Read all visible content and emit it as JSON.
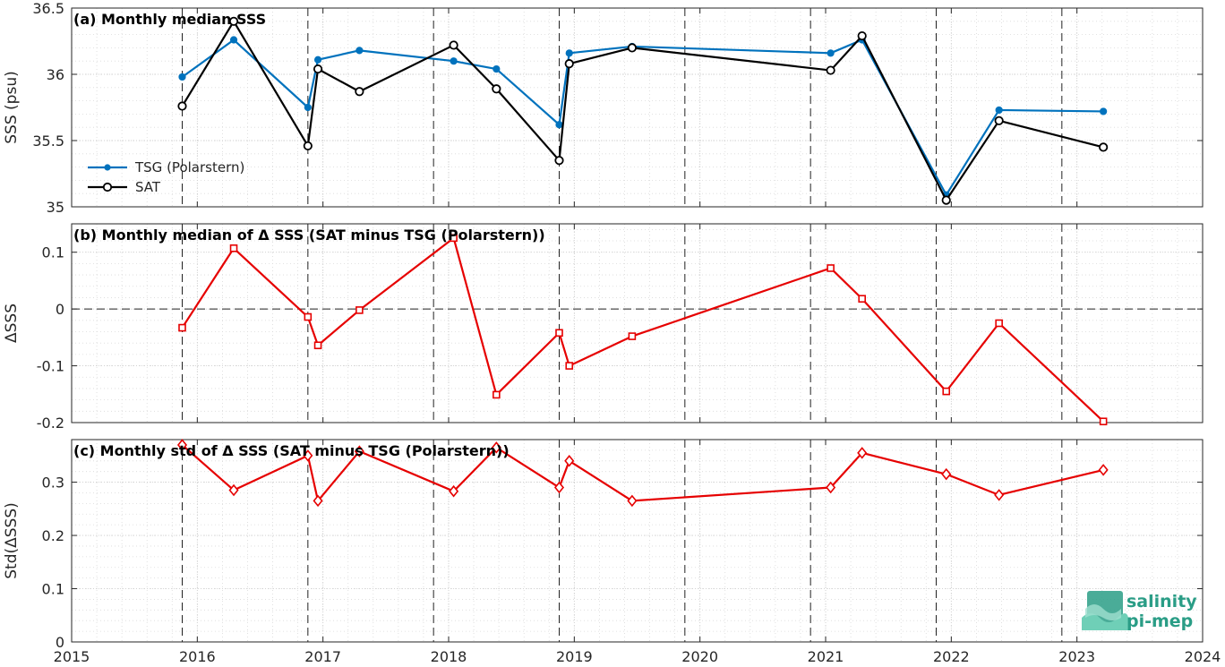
{
  "chart_data": [
    {
      "type": "line",
      "title": "(a) Monthly median SSS",
      "ylabel": "SSS (psu)",
      "xlim": [
        2015,
        2024
      ],
      "ylim": [
        35,
        36.5
      ],
      "yticks": [
        35,
        35.5,
        36,
        36.5
      ],
      "yticklabels": [
        "35",
        "35.5",
        "36",
        "36.5"
      ],
      "legend_position": "middle-left",
      "series": [
        {
          "name": "TSG (Polarstern)",
          "color": "#0072bd",
          "marker": "dot",
          "x": [
            2015.88,
            2016.29,
            2016.88,
            2016.96,
            2017.29,
            2018.04,
            2018.38,
            2018.88,
            2018.96,
            2019.46,
            2021.04,
            2021.29,
            2021.96,
            2022.38,
            2023.21
          ],
          "y": [
            35.98,
            36.26,
            35.75,
            36.11,
            36.18,
            36.1,
            36.04,
            35.62,
            36.16,
            36.21,
            36.16,
            36.26,
            35.09,
            35.73,
            35.72
          ]
        },
        {
          "name": "SAT",
          "color": "#000000",
          "marker": "circle",
          "x": [
            2015.88,
            2016.29,
            2016.88,
            2016.96,
            2017.29,
            2018.04,
            2018.38,
            2018.88,
            2018.96,
            2019.46,
            2021.04,
            2021.29,
            2021.96,
            2022.38,
            2023.21
          ],
          "y": [
            35.76,
            36.4,
            35.46,
            36.04,
            35.87,
            36.22,
            35.89,
            35.35,
            36.08,
            36.2,
            36.03,
            36.29,
            35.05,
            35.65,
            35.45
          ]
        }
      ]
    },
    {
      "type": "line",
      "title": "(b) Monthly median of Δ SSS (SAT minus TSG (Polarstern))",
      "ylabel": "ΔSSS",
      "xlim": [
        2015,
        2024
      ],
      "ylim": [
        -0.2,
        0.15
      ],
      "yticks": [
        -0.2,
        -0.1,
        0,
        0.1
      ],
      "yticklabels": [
        "-0.2",
        "-0.1",
        "0",
        "0.1"
      ],
      "zero_line": true,
      "series": [
        {
          "color": "#e60000",
          "marker": "square",
          "x": [
            2015.88,
            2016.29,
            2016.88,
            2016.96,
            2017.29,
            2018.04,
            2018.38,
            2018.88,
            2018.96,
            2019.46,
            2021.04,
            2021.29,
            2021.96,
            2022.38,
            2023.21
          ],
          "y": [
            -0.033,
            0.107,
            -0.014,
            -0.064,
            -0.002,
            0.125,
            -0.151,
            -0.042,
            -0.1,
            -0.048,
            0.072,
            0.018,
            -0.145,
            -0.025,
            -0.198
          ]
        }
      ]
    },
    {
      "type": "line",
      "title": "(c) Monthly std of Δ SSS (SAT minus TSG (Polarstern))",
      "ylabel": "Std(ΔSSS)",
      "xlabel": "",
      "xlim": [
        2015,
        2024
      ],
      "ylim": [
        0,
        0.38
      ],
      "yticks": [
        0,
        0.1,
        0.2,
        0.3
      ],
      "yticklabels": [
        "0",
        "0.1",
        "0.2",
        "0.3"
      ],
      "xticks": [
        2015,
        2016,
        2017,
        2018,
        2019,
        2020,
        2021,
        2022,
        2023,
        2024
      ],
      "xticklabels": [
        "2015",
        "2016",
        "2017",
        "2018",
        "2019",
        "2020",
        "2021",
        "2022",
        "2023",
        "2024"
      ],
      "series": [
        {
          "color": "#e60000",
          "marker": "diamond",
          "x": [
            2015.88,
            2016.29,
            2016.88,
            2016.96,
            2017.29,
            2018.04,
            2018.38,
            2018.88,
            2018.96,
            2019.46,
            2021.04,
            2021.29,
            2021.96,
            2022.38,
            2023.21
          ],
          "y": [
            0.37,
            0.285,
            0.35,
            0.265,
            0.358,
            0.283,
            0.365,
            0.29,
            0.34,
            0.265,
            0.29,
            0.355,
            0.315,
            0.276,
            0.323
          ]
        }
      ]
    }
  ],
  "vertical_dashed_lines_x": [
    2015.88,
    2016.88,
    2017.88,
    2018.88,
    2019.88,
    2020.88,
    2021.88,
    2022.88
  ],
  "logo": {
    "line1": "salinity",
    "line2": "pi-mep",
    "color": "#2a9d86"
  }
}
